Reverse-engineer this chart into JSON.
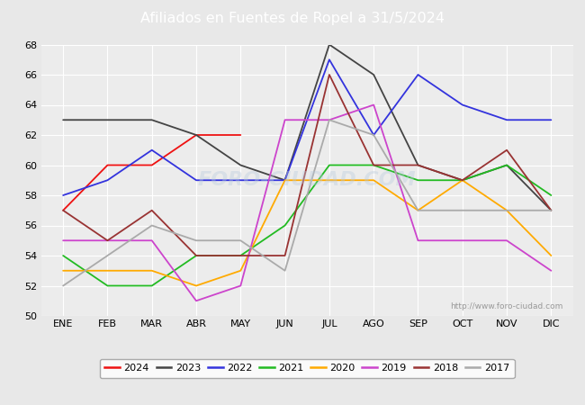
{
  "title": "Afiliados en Fuentes de Ropel a 31/5/2024",
  "title_bg": "#5b8db8",
  "months": [
    "ENE",
    "FEB",
    "MAR",
    "ABR",
    "MAY",
    "JUN",
    "JUL",
    "AGO",
    "SEP",
    "OCT",
    "NOV",
    "DIC"
  ],
  "watermark": "http://www.foro-ciudad.com",
  "ylim": [
    50,
    68
  ],
  "yticks": [
    50,
    52,
    54,
    56,
    58,
    60,
    62,
    64,
    66,
    68
  ],
  "series": {
    "2024": {
      "color": "#ee1111",
      "data": [
        57,
        60,
        60,
        62,
        62,
        null,
        null,
        null,
        null,
        null,
        null,
        null
      ]
    },
    "2023": {
      "color": "#444444",
      "data": [
        63,
        63,
        63,
        62,
        60,
        59,
        68,
        66,
        60,
        59,
        60,
        57
      ]
    },
    "2022": {
      "color": "#3333dd",
      "data": [
        58,
        59,
        61,
        59,
        59,
        59,
        67,
        62,
        66,
        64,
        63,
        63
      ]
    },
    "2021": {
      "color": "#22bb22",
      "data": [
        54,
        52,
        52,
        54,
        54,
        56,
        60,
        60,
        59,
        59,
        60,
        58
      ]
    },
    "2020": {
      "color": "#ffaa00",
      "data": [
        53,
        53,
        53,
        52,
        53,
        59,
        59,
        59,
        57,
        59,
        57,
        54
      ]
    },
    "2019": {
      "color": "#cc44cc",
      "data": [
        55,
        55,
        55,
        51,
        52,
        63,
        63,
        64,
        55,
        55,
        55,
        53
      ]
    },
    "2018": {
      "color": "#993333",
      "data": [
        57,
        55,
        57,
        54,
        54,
        54,
        66,
        60,
        60,
        59,
        61,
        57
      ]
    },
    "2017": {
      "color": "#aaaaaa",
      "data": [
        52,
        54,
        56,
        55,
        55,
        53,
        63,
        62,
        57,
        57,
        57,
        57
      ]
    }
  },
  "bg_color": "#e8e8e8",
  "plot_bg": "#ececec",
  "grid_color": "#ffffff"
}
